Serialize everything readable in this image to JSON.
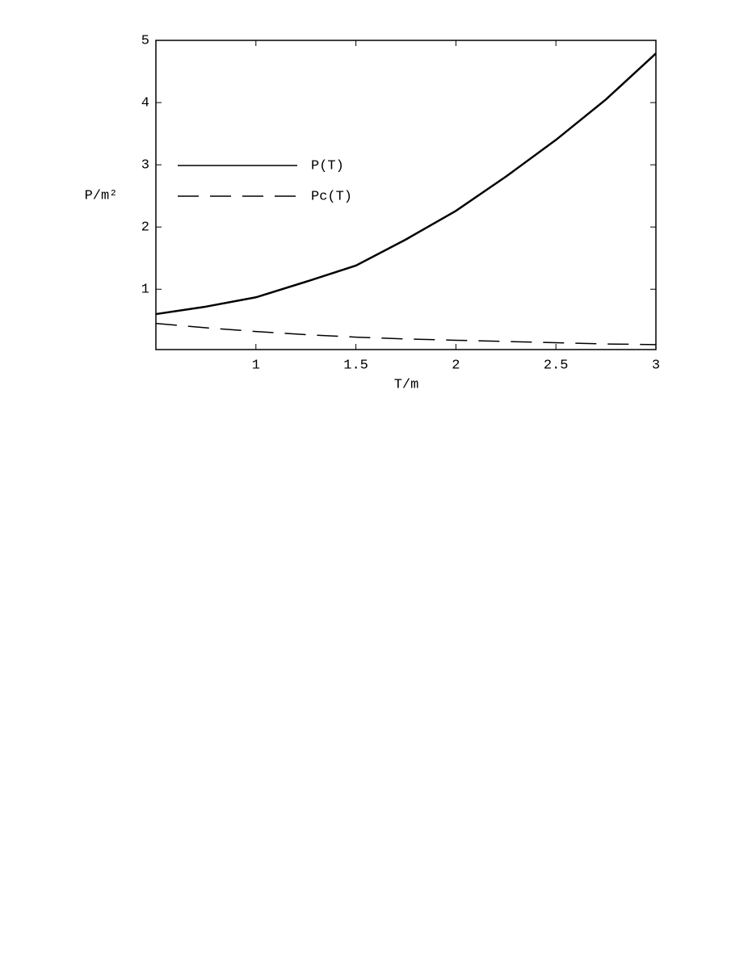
{
  "chart_data": {
    "type": "line",
    "x": [
      0.5,
      0.75,
      1,
      1.25,
      1.5,
      1.75,
      2,
      2.25,
      2.5,
      2.75,
      3
    ],
    "series": [
      {
        "name": "P(T)",
        "color": "#000000",
        "dash": false,
        "values": [
          0.6,
          0.72,
          0.87,
          1.12,
          1.38,
          1.8,
          2.26,
          2.81,
          3.4,
          4.05,
          4.79
        ]
      },
      {
        "name": "Pc(T)",
        "color": "#000000",
        "dash": true,
        "values": [
          0.45,
          0.38,
          0.32,
          0.27,
          0.23,
          0.2,
          0.18,
          0.16,
          0.14,
          0.12,
          0.11
        ]
      }
    ],
    "x_label": "T/m",
    "y_label": "P/m²",
    "xlim": [
      0.5,
      3
    ],
    "xticks": [
      1,
      1.5,
      2,
      2.5,
      3
    ],
    "ylim": [
      0.03,
      5
    ],
    "yticks": [
      1,
      2,
      3,
      4,
      5
    ]
  }
}
